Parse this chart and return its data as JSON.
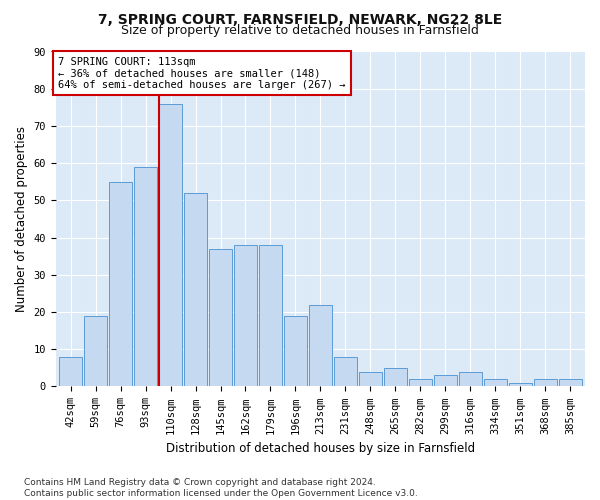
{
  "title1": "7, SPRING COURT, FARNSFIELD, NEWARK, NG22 8LE",
  "title2": "Size of property relative to detached houses in Farnsfield",
  "xlabel": "Distribution of detached houses by size in Farnsfield",
  "ylabel": "Number of detached properties",
  "categories": [
    "42sqm",
    "59sqm",
    "76sqm",
    "93sqm",
    "110sqm",
    "128sqm",
    "145sqm",
    "162sqm",
    "179sqm",
    "196sqm",
    "213sqm",
    "231sqm",
    "248sqm",
    "265sqm",
    "282sqm",
    "299sqm",
    "316sqm",
    "334sqm",
    "351sqm",
    "368sqm",
    "385sqm"
  ],
  "values": [
    8,
    19,
    55,
    59,
    76,
    52,
    37,
    38,
    38,
    19,
    22,
    8,
    4,
    5,
    2,
    3,
    4,
    2,
    1,
    2,
    2
  ],
  "bar_color": "#c5d9f0",
  "bar_edge_color": "#5b9bd5",
  "red_line_index": 4,
  "red_line_color": "#cc0000",
  "annotation_text": "7 SPRING COURT: 113sqm\n← 36% of detached houses are smaller (148)\n64% of semi-detached houses are larger (267) →",
  "annotation_box_color": "#ffffff",
  "annotation_box_edge": "#cc0000",
  "ylim": [
    0,
    90
  ],
  "yticks": [
    0,
    10,
    20,
    30,
    40,
    50,
    60,
    70,
    80,
    90
  ],
  "footer": "Contains HM Land Registry data © Crown copyright and database right 2024.\nContains public sector information licensed under the Open Government Licence v3.0.",
  "fig_bg_color": "#ffffff",
  "plot_bg_color": "#dce9f7",
  "grid_color": "#ffffff",
  "title_fontsize": 10,
  "subtitle_fontsize": 9,
  "axis_label_fontsize": 8.5,
  "tick_fontsize": 7.5,
  "annotation_fontsize": 7.5,
  "footer_fontsize": 6.5
}
